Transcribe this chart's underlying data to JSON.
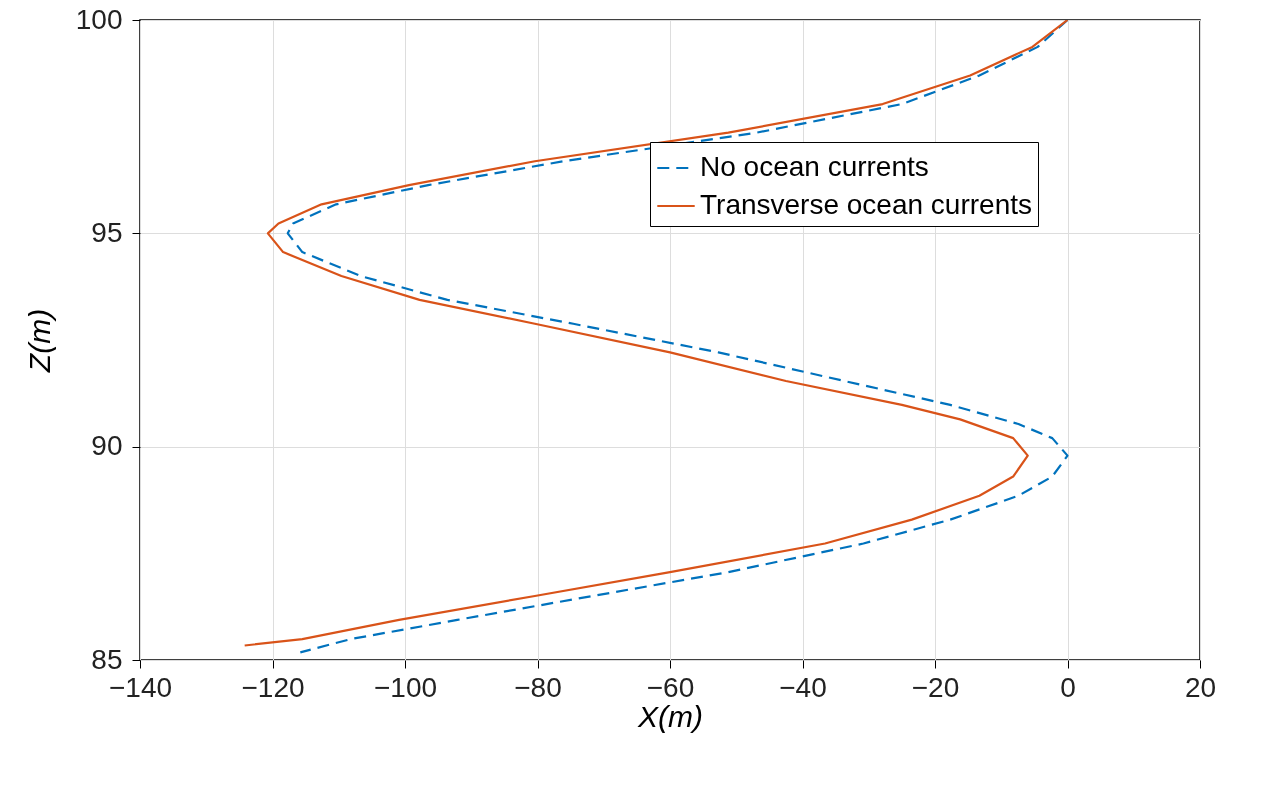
{
  "chart_data": {
    "type": "line",
    "xlabel": "X(m)",
    "ylabel": "Z(m)",
    "xlim": [
      -140,
      20
    ],
    "ylim": [
      85,
      100
    ],
    "xticks": [
      -140,
      -120,
      -100,
      -80,
      -60,
      -40,
      -20,
      0,
      20
    ],
    "yticks": [
      85,
      90,
      95,
      100
    ],
    "grid": true,
    "legend": "top right",
    "marker": "none",
    "series": [
      {
        "name": "No ocean currents",
        "color": "#0072bd",
        "line_style": "dashed",
        "x": [
          0,
          -4.5,
          -13.3,
          -25,
          -46.9,
          -76.1,
          -96.5,
          -110.4,
          -116.9,
          -117.7,
          -115.5,
          -106.7,
          -93.6,
          -74.6,
          -52.7,
          -33.7,
          -17.7,
          -7.4,
          -2.3,
          0,
          -2.3,
          -7.4,
          -17.7,
          -30.8,
          -51.2,
          -71.7,
          -92.1,
          -108.2,
          -115.8
        ],
        "values": [
          100,
          99.37,
          98.7,
          98.03,
          97.36,
          96.69,
          96.13,
          95.68,
          95.23,
          95,
          94.56,
          94,
          93.44,
          92.88,
          92.21,
          91.54,
          90.98,
          90.53,
          90.2,
          89.79,
          89.3,
          88.85,
          88.29,
          87.73,
          87.06,
          86.5,
          85.94,
          85.49,
          85.18
        ]
      },
      {
        "name": "Transverse ocean currents",
        "color": "#d95319",
        "line_style": "solid",
        "x": [
          0,
          -5.3,
          -14.7,
          -27.9,
          -51.2,
          -80.4,
          -99.4,
          -112.6,
          -119.1,
          -120.7,
          -118.4,
          -109.6,
          -97.8,
          -80.4,
          -60,
          -42.5,
          -25,
          -16.2,
          -8.2,
          -6,
          -8.2,
          -13.3,
          -23.5,
          -36.6,
          -60,
          -80.4,
          -100.9,
          -115.5,
          -124.2
        ],
        "values": [
          100,
          99.37,
          98.7,
          98.03,
          97.36,
          96.69,
          96.13,
          95.68,
          95.23,
          95,
          94.56,
          94,
          93.44,
          92.88,
          92.21,
          91.54,
          90.98,
          90.64,
          90.2,
          89.79,
          89.3,
          88.85,
          88.29,
          87.73,
          87.06,
          86.5,
          85.94,
          85.49,
          85.34
        ]
      }
    ]
  }
}
